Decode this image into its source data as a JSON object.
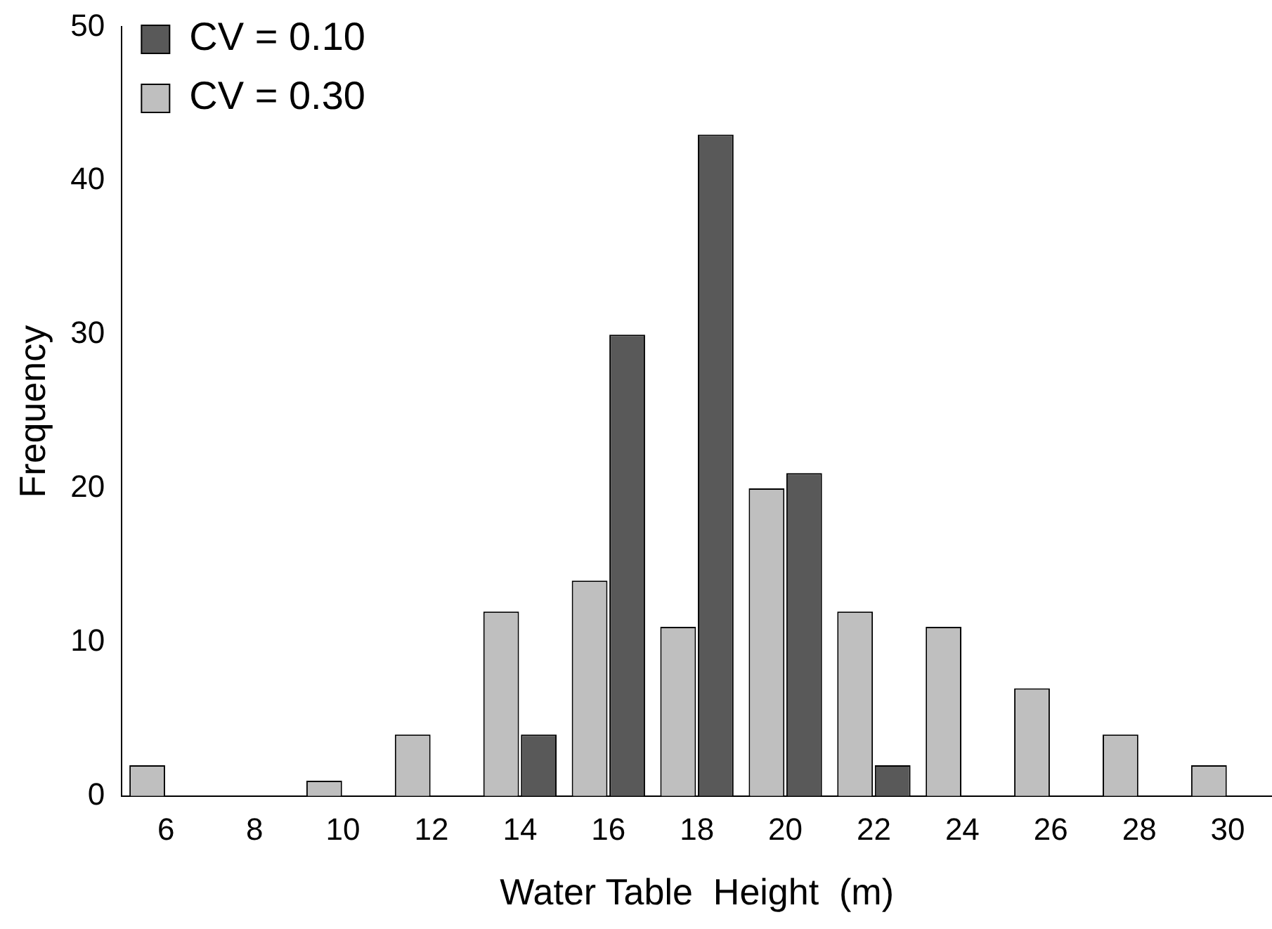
{
  "chart_data": {
    "type": "bar",
    "xlabel": "Water Table  Height  (m)",
    "ylabel": "Frequency",
    "categories": [
      "6",
      "8",
      "10",
      "12",
      "14",
      "16",
      "18",
      "20",
      "22",
      "24",
      "26",
      "28",
      "30"
    ],
    "series": [
      {
        "name": "CV = 0.10",
        "color": "#595959",
        "values": [
          0,
          0,
          0,
          0,
          4,
          30,
          43,
          21,
          2,
          0,
          0,
          0,
          0
        ]
      },
      {
        "name": "CV = 0.30",
        "color": "#bfbfbf",
        "values": [
          2,
          0,
          1,
          4,
          12,
          14,
          11,
          20,
          12,
          11,
          7,
          4,
          2
        ]
      }
    ],
    "ylim": [
      0,
      50
    ],
    "yticks": [
      0,
      10,
      20,
      30,
      40,
      50
    ],
    "grid": false,
    "legend": "top left"
  }
}
